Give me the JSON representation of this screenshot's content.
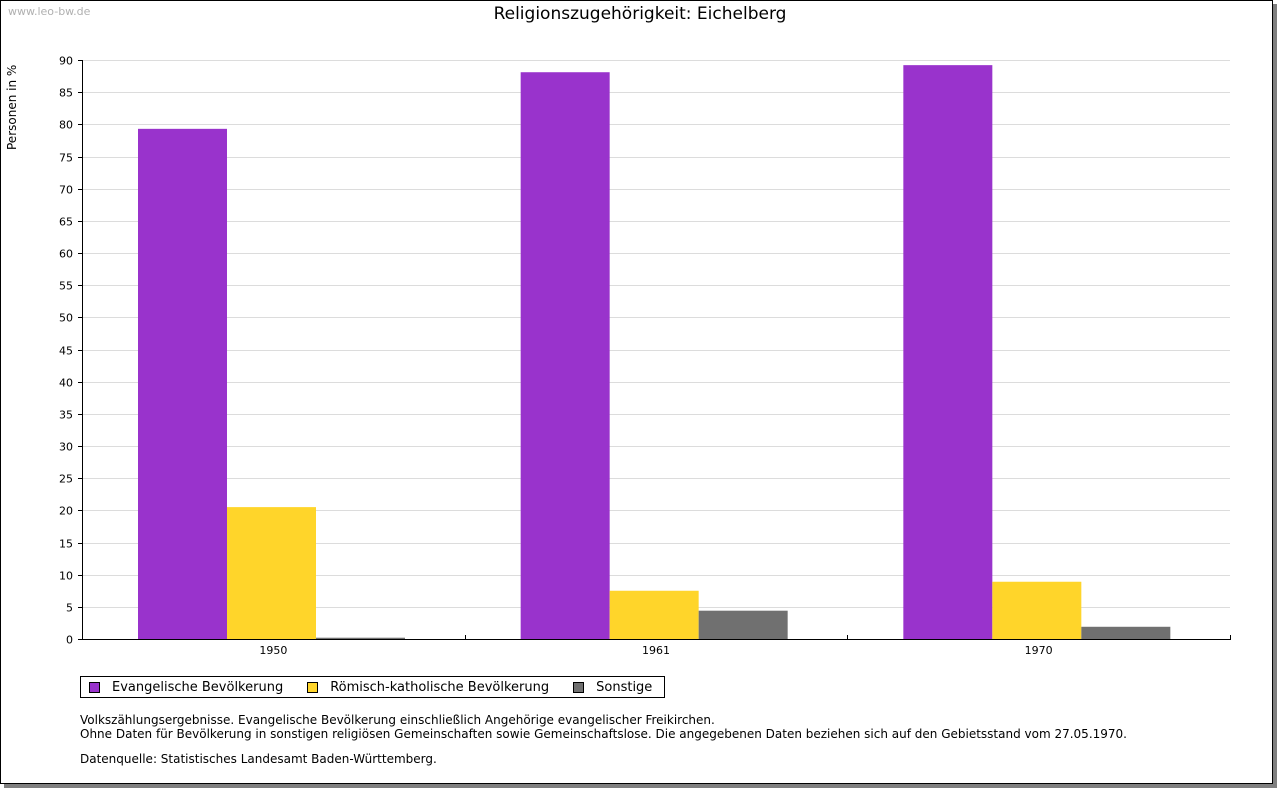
{
  "watermark": "www.leo-bw.de",
  "chart_data": {
    "type": "bar",
    "title": "Religionszugehörigkeit: Eichelberg",
    "ylabel": "Personen in %",
    "xlabel": "",
    "ylim": [
      0,
      90
    ],
    "ytick_step": 5,
    "grid": true,
    "legend_position": "bottom-left",
    "categories": [
      "1950",
      "1961",
      "1970"
    ],
    "series": [
      {
        "name": "Evangelische Bevölkerung",
        "color": "#9933cc",
        "values": [
          79.3,
          88.1,
          89.2
        ]
      },
      {
        "name": "Römisch-katholische Bevölkerung",
        "color": "#ffd52a",
        "values": [
          20.5,
          7.5,
          8.9
        ]
      },
      {
        "name": "Sonstige",
        "color": "#707070",
        "values": [
          0.2,
          4.4,
          1.9
        ]
      }
    ]
  },
  "notes": [
    "Volkszählungsergebnisse. Evangelische Bevölkerung einschließlich Angehörige evangelischer Freikirchen.",
    "Ohne Daten für Bevölkerung in sonstigen religiösen Gemeinschaften sowie Gemeinschaftslose. Die angegebenen Daten beziehen sich auf den Gebietsstand vom 27.05.1970."
  ],
  "source": "Datenquelle: Statistisches Landesamt Baden-Württemberg."
}
